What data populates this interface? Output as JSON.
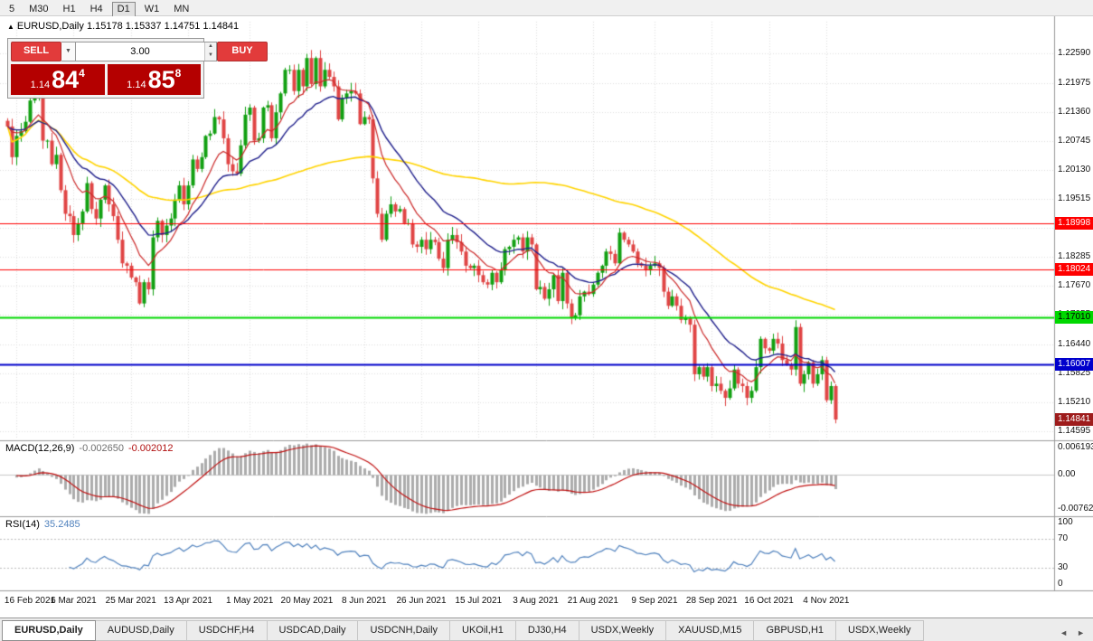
{
  "toolbar": {
    "items": [
      "5",
      "M30",
      "H1",
      "H4",
      "D1",
      "W1",
      "MN"
    ],
    "active": "D1"
  },
  "chart": {
    "collapse_icon": "▲",
    "title": "EURUSD,Daily",
    "ohlc": "1.15178 1.15337 1.14751 1.14841"
  },
  "trade_panel": {
    "sell_label": "SELL",
    "buy_label": "BUY",
    "volume": "3.00",
    "dropdown_icon": "▼",
    "spinner_up": "▲",
    "spinner_down": "▼",
    "sell_price": {
      "small": "1.14",
      "big": "84",
      "sup": "4"
    },
    "buy_price": {
      "small": "1.14",
      "big": "85",
      "sup": "8"
    }
  },
  "indicators": {
    "macd": {
      "name": "MACD(12,26,9)",
      "value_main": "-0.002650",
      "value_signal": "-0.002012",
      "axis": [
        "0.006193",
        "0.00",
        "-0.00762"
      ]
    },
    "rsi": {
      "name": "RSI(14)",
      "value": "35.2485",
      "axis": [
        "100",
        "70",
        "30",
        "0"
      ]
    }
  },
  "price_axis": {
    "range": [
      1.1442,
      1.2327
    ],
    "ticks": [
      "1.22590",
      "1.21975",
      "1.21360",
      "1.20745",
      "1.20130",
      "1.19515",
      "1.18900",
      "1.18285",
      "1.17670",
      "1.17055",
      "1.16440",
      "1.15825",
      "1.15210",
      "1.14595"
    ]
  },
  "levels": [
    {
      "label": "1.18998",
      "value": 1.18998,
      "color": "#FF0000",
      "text_color": "#FFFFFF",
      "width": 1
    },
    {
      "label": "1.18024",
      "value": 1.18024,
      "color": "#FF0000",
      "text_color": "#FFFFFF",
      "width": 1
    },
    {
      "label": "1.17010",
      "value": 1.1701,
      "color": "#00D800",
      "text_color": "#000000",
      "width": 2
    },
    {
      "label": "1.16007",
      "value": 1.16007,
      "color": "#0000CC",
      "text_color": "#FFFFFF",
      "width": 2
    }
  ],
  "current_price": {
    "label": "1.14841",
    "value": 1.14841
  },
  "tabs": {
    "items": [
      "EURUSD,Daily",
      "AUDUSD,Daily",
      "USDCHF,H4",
      "USDCAD,Daily",
      "USDCNH,Daily",
      "UKOil,H1",
      "DJ30,H4",
      "USDX,Weekly",
      "XAUUSD,M15",
      "GBPUSD,H1",
      "USDX,Weekly"
    ],
    "active_index": 0,
    "scroll_left": "◄",
    "scroll_right": "►"
  },
  "colors": {
    "candle_up": "#11A011",
    "candle_down": "#E04545",
    "ma_yellow": "#FFD400",
    "ma_red": "#CC2A2A",
    "ma_navy": "#20208C",
    "macd_hist": "#ACACAC",
    "macd_signal": "#C01010",
    "rsi_line": "#4F81BD",
    "grid": "#DEDEDE",
    "separator": "#9A9A9A",
    "tag_current_bg": "#9E1C1C",
    "buy_sell_red": "#E23B3B",
    "price_box_red": "#B40000"
  },
  "chart_data": {
    "type": "candlestick",
    "symbol": "EURUSD",
    "timeframe": "Daily",
    "y_range": [
      1.1442,
      1.2327
    ],
    "x_labels": [
      "16 Feb 2021",
      "6 Mar 2021",
      "25 Mar 2021",
      "13 Apr 2021",
      "1 May 2021",
      "20 May 2021",
      "8 Jun 2021",
      "26 Jun 2021",
      "15 Jul 2021",
      "3 Aug 2021",
      "21 Aug 2021",
      "9 Sep 2021",
      "28 Sep 2021",
      "16 Oct 2021",
      "4 Nov 2021"
    ],
    "closes": [
      1.2105,
      1.204,
      1.2085,
      1.2095,
      1.2115,
      1.216,
      1.217,
      1.2175,
      1.2075,
      1.2075,
      1.2025,
      1.2045,
      1.197,
      1.192,
      1.1915,
      1.1875,
      1.19,
      1.1925,
      1.1985,
      1.193,
      1.191,
      1.195,
      1.198,
      1.194,
      1.1915,
      1.1865,
      1.1815,
      1.181,
      1.1785,
      1.1775,
      1.173,
      1.1775,
      1.176,
      1.187,
      1.1905,
      1.1875,
      1.1895,
      1.191,
      1.195,
      1.198,
      1.194,
      1.198,
      1.2035,
      1.2015,
      1.204,
      1.2085,
      1.209,
      1.2125,
      1.212,
      1.208,
      1.2025,
      1.201,
      1.2005,
      1.2065,
      1.213,
      1.2145,
      1.2075,
      1.208,
      1.2145,
      1.215,
      1.208,
      1.2135,
      1.2175,
      1.2225,
      1.2225,
      1.218,
      1.2225,
      1.219,
      1.225,
      1.2195,
      1.225,
      1.219,
      1.2225,
      1.221,
      1.219,
      1.212,
      1.2165,
      1.2175,
      1.218,
      1.2175,
      1.211,
      1.2125,
      1.212,
      1.1995,
      1.192,
      1.1865,
      1.192,
      1.194,
      1.1925,
      1.193,
      1.19,
      1.19,
      1.1855,
      1.185,
      1.1865,
      1.1845,
      1.1865,
      1.186,
      1.1825,
      1.1805,
      1.1865,
      1.1875,
      1.186,
      1.184,
      1.181,
      1.1805,
      1.181,
      1.179,
      1.1775,
      1.177,
      1.1795,
      1.1775,
      1.18,
      1.1845,
      1.185,
      1.1865,
      1.187,
      1.184,
      1.187,
      1.1855,
      1.176,
      1.1765,
      1.174,
      1.176,
      1.179,
      1.1735,
      1.1795,
      1.173,
      1.17,
      1.1705,
      1.1745,
      1.1755,
      1.175,
      1.177,
      1.1795,
      1.181,
      1.184,
      1.1835,
      1.1815,
      1.188,
      1.1865,
      1.1855,
      1.184,
      1.1815,
      1.181,
      1.18,
      1.181,
      1.1815,
      1.1805,
      1.1755,
      1.1725,
      1.1745,
      1.1725,
      1.1695,
      1.17,
      1.1685,
      1.158,
      1.1595,
      1.1575,
      1.1595,
      1.1555,
      1.156,
      1.1545,
      1.153,
      1.155,
      1.159,
      1.156,
      1.1555,
      1.153,
      1.1545,
      1.1595,
      1.1655,
      1.1635,
      1.163,
      1.1655,
      1.1645,
      1.161,
      1.16,
      1.159,
      1.168,
      1.156,
      1.158,
      1.1605,
      1.156,
      1.158,
      1.161,
      1.1525,
      1.1555,
      1.14841
    ],
    "overlays": {
      "sma_slow_period": 90,
      "ema_fast_period": 10,
      "ema_mid_period": 21
    },
    "macd": {
      "fast": 12,
      "slow": 26,
      "signal": 9,
      "range": [
        -0.0076,
        0.0062
      ]
    },
    "rsi": {
      "period": 14,
      "range": [
        0,
        100
      ],
      "levels": [
        30,
        70
      ]
    }
  }
}
